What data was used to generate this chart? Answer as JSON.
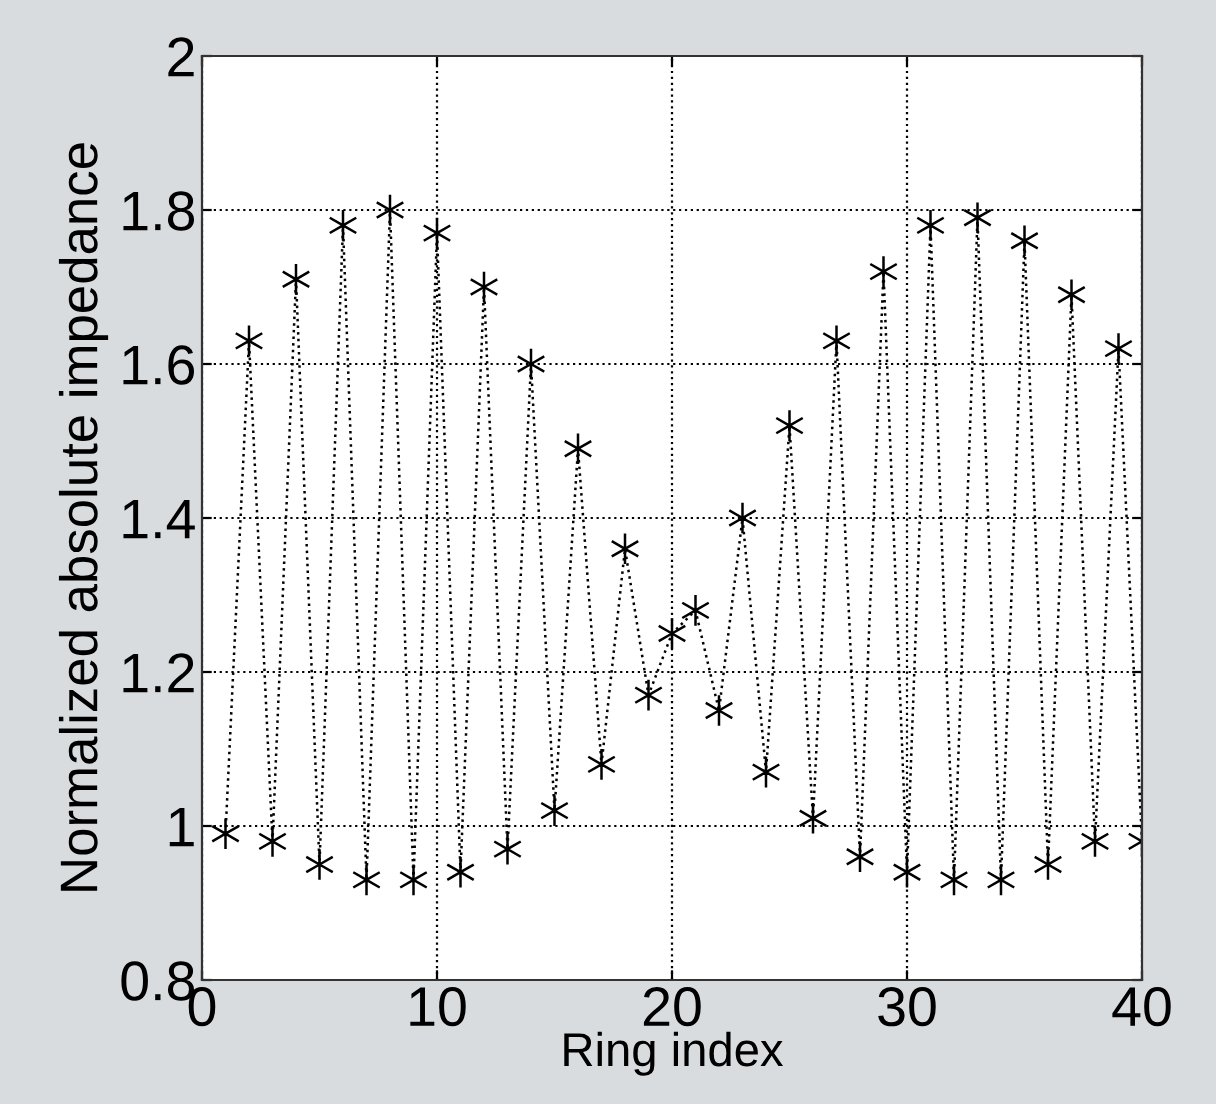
{
  "chart_data": {
    "type": "line",
    "xlabel": "Ring index",
    "ylabel": "Normalized absolute impedance",
    "x": [
      1,
      2,
      3,
      4,
      5,
      6,
      7,
      8,
      9,
      10,
      11,
      12,
      13,
      14,
      15,
      16,
      17,
      18,
      19,
      20,
      21,
      22,
      23,
      24,
      25,
      26,
      27,
      28,
      29,
      30,
      31,
      32,
      33,
      34,
      35,
      36,
      37,
      38,
      39,
      40
    ],
    "series": [
      {
        "color": "#000000",
        "values": [
          0.99,
          1.63,
          0.98,
          1.71,
          0.95,
          1.78,
          0.93,
          1.8,
          0.93,
          1.77,
          0.94,
          1.7,
          0.97,
          1.6,
          1.02,
          1.49,
          1.08,
          1.36,
          1.17,
          1.25,
          1.28,
          1.15,
          1.4,
          1.07,
          1.52,
          1.01,
          1.63,
          0.96,
          1.72,
          0.94,
          1.78,
          0.93,
          1.79,
          0.93,
          1.76,
          0.95,
          1.69,
          0.98,
          1.62,
          0.98
        ]
      }
    ],
    "xlim": [
      0,
      40
    ],
    "xticks": [
      0,
      10,
      20,
      30,
      40
    ],
    "ylim": [
      0.8,
      2
    ],
    "yticks": [
      0.8,
      1,
      1.2,
      1.4,
      1.6,
      1.8,
      2
    ],
    "grid": true,
    "marker": "cross",
    "line_style": "dotted"
  }
}
